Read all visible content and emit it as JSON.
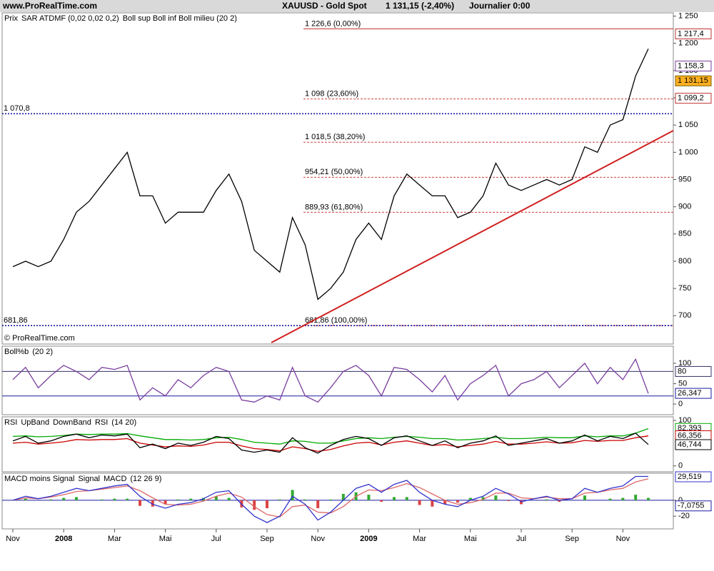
{
  "header": {
    "site": "www.ProRealTime.com",
    "title": "XAUUSD - Gold Spot",
    "quote": "1 131,15 (-2,40%)",
    "period": "Journalier 0:00"
  },
  "chart_data": [
    {
      "type": "line",
      "title": "Prix",
      "watermark": "© ProRealTime.com",
      "indicators": [
        {
          "text": "SAR ATDMF (0,02 0,02 0,2)",
          "color": "#d04040"
        },
        {
          "text": "Boll sup Boll inf Boll milieu (20 2)",
          "color": "#7a3fa0"
        }
      ],
      "categories": [
        "Nov",
        null,
        null,
        null,
        "2008",
        null,
        null,
        null,
        "Mar",
        null,
        null,
        null,
        "Mai",
        null,
        null,
        null,
        "Jul",
        null,
        null,
        null,
        "Sep",
        null,
        null,
        null,
        "Nov",
        null,
        null,
        null,
        "2009",
        null,
        null,
        null,
        "Mar",
        null,
        null,
        null,
        "Mai",
        null,
        null,
        null,
        "Jul",
        null,
        null,
        null,
        "Sep",
        null,
        null,
        null,
        "Nov",
        null,
        null
      ],
      "series": [
        {
          "color": "#000000",
          "values": [
            790,
            800,
            790,
            800,
            840,
            890,
            910,
            940,
            970,
            1000,
            920,
            920,
            870,
            890,
            890,
            890,
            930,
            960,
            910,
            820,
            800,
            780,
            880,
            830,
            730,
            750,
            780,
            840,
            870,
            840,
            920,
            960,
            940,
            920,
            920,
            880,
            890,
            920,
            980,
            940,
            930,
            940,
            950,
            940,
            950,
            1010,
            1000,
            1050,
            1060,
            1140,
            1190
          ]
        }
      ],
      "ylim": [
        648,
        1256
      ],
      "yticks": [
        700,
        750,
        800,
        850,
        900,
        950,
        {
          "value": 1000,
          "label": "1 000"
        },
        {
          "value": 1050,
          "label": "1 050"
        },
        {
          "value": 1100,
          "label": "1 100"
        },
        {
          "value": 1150,
          "label": "1 150"
        },
        {
          "value": 1200,
          "label": "1 200"
        },
        {
          "value": 1250,
          "label": "1 250"
        }
      ],
      "levels": [
        {
          "value": 1226.6,
          "label": "1 226,6 (0,00%)",
          "color": "#c03030",
          "style": "solid"
        },
        {
          "value": 1098,
          "label": "1 098 (23,60%)",
          "color": "#d04040",
          "style": "dashed"
        },
        {
          "value": 1018.5,
          "label": "1 018,5 (38,20%)",
          "color": "#d04040",
          "style": "dashed"
        },
        {
          "value": 954.21,
          "label": "954,21 (50,00%)",
          "color": "#d04040",
          "style": "dashed"
        },
        {
          "value": 889.93,
          "label": "889,93 (61,80%)",
          "color": "#d04040",
          "style": "dashed"
        },
        {
          "value": 681.86,
          "label": "681,86 (100,00%)",
          "color": "#d04040",
          "style": "dashed"
        },
        {
          "value": 1070.8,
          "label": "1 070,8",
          "color": "#1a1aa0",
          "style": "dotted"
        },
        {
          "value": 681.86,
          "label": "681,86",
          "color": "#1a1aa0",
          "style": "dotted"
        }
      ],
      "tags": [
        {
          "value": 1217.4,
          "label": "1 217,4",
          "color": "#c03030",
          "fill": "#ffffff"
        },
        {
          "value": 1158.3,
          "label": "1 158,3",
          "color": "#7a3fa0",
          "fill": "#ffffff"
        },
        {
          "value": 1131.15,
          "label": "1 131,15",
          "color": "#806000",
          "fill": "#ffb020"
        },
        {
          "value": 1099.2,
          "label": "1 099,2",
          "color": "#c03030",
          "fill": "#ffffff"
        }
      ]
    },
    {
      "type": "line",
      "title": "Boll%b",
      "params": "(20 2)",
      "series": [
        {
          "color": "#7a3fa0",
          "values": [
            60,
            90,
            40,
            70,
            95,
            80,
            60,
            90,
            85,
            95,
            10,
            40,
            20,
            60,
            40,
            70,
            90,
            80,
            10,
            5,
            20,
            10,
            90,
            20,
            5,
            40,
            80,
            95,
            70,
            20,
            90,
            85,
            60,
            30,
            70,
            10,
            50,
            70,
            95,
            20,
            50,
            60,
            80,
            40,
            70,
            100,
            50,
            90,
            60,
            110,
            26
          ]
        }
      ],
      "ylim": [
        -26,
        142
      ],
      "yticks": [
        0,
        50,
        100
      ],
      "levels": [
        {
          "value": 80,
          "color": "#333366",
          "style": "solid"
        },
        {
          "value": 20,
          "color": "#1a1aa0",
          "style": "solid"
        }
      ],
      "tags": [
        {
          "value": 80,
          "label": "80",
          "color": "#333366",
          "fill": "#ffffff"
        },
        {
          "value": 26.347,
          "label": "26,347",
          "color": "#1a1aa0",
          "fill": "#ffffff"
        }
      ]
    },
    {
      "type": "line",
      "title": "RSI",
      "params": "(14 20)",
      "series": [
        {
          "name": "UpBand",
          "color": "#00aa00",
          "values": [
            65,
            66,
            64,
            65,
            67,
            70,
            69,
            70,
            70,
            71,
            66,
            62,
            58,
            58,
            57,
            58,
            62,
            63,
            58,
            52,
            50,
            48,
            55,
            54,
            50,
            50,
            55,
            60,
            62,
            60,
            63,
            65,
            63,
            60,
            60,
            57,
            58,
            60,
            63,
            60,
            60,
            61,
            63,
            62,
            62,
            66,
            64,
            66,
            66,
            72,
            82
          ]
        },
        {
          "name": "DownBand",
          "color": "#cc0000",
          "values": [
            50,
            52,
            48,
            50,
            53,
            58,
            57,
            58,
            58,
            60,
            50,
            46,
            42,
            44,
            43,
            46,
            52,
            52,
            44,
            38,
            36,
            33,
            42,
            38,
            32,
            36,
            44,
            50,
            52,
            46,
            52,
            55,
            50,
            45,
            47,
            42,
            45,
            48,
            54,
            48,
            48,
            50,
            53,
            50,
            51,
            56,
            54,
            56,
            56,
            62,
            66
          ]
        },
        {
          "name": "RSI",
          "color": "#000000",
          "values": [
            55,
            65,
            50,
            55,
            65,
            70,
            62,
            68,
            66,
            70,
            40,
            48,
            38,
            50,
            45,
            52,
            65,
            60,
            35,
            30,
            35,
            30,
            62,
            40,
            28,
            45,
            58,
            65,
            60,
            45,
            62,
            66,
            55,
            45,
            55,
            40,
            50,
            55,
            66,
            45,
            50,
            55,
            60,
            50,
            55,
            68,
            55,
            65,
            60,
            72,
            47
          ]
        }
      ],
      "ylim": [
        -13,
        108
      ],
      "yticks": [
        0,
        100
      ],
      "tags": [
        {
          "value": 82.393,
          "label": "82,393",
          "color": "#00aa00",
          "fill": "#ffffff"
        },
        {
          "value": 66.356,
          "label": "66,356",
          "color": "#cc0000",
          "fill": "#ffffff"
        },
        {
          "value": 46.744,
          "label": "46,744",
          "color": "#000000",
          "fill": "#ffffff"
        }
      ]
    },
    {
      "type": "line",
      "title": "",
      "params": "(12 26 9)",
      "series": [
        {
          "name": "MACD moins Signal",
          "type": "bar",
          "color": "#33aa33",
          "negative_color": "#dd4444",
          "values": [
            0,
            2,
            0,
            1,
            3,
            4,
            0,
            1,
            2,
            2,
            -7,
            -8,
            -5,
            1,
            2,
            3,
            5,
            3,
            -9,
            -12,
            -10,
            1,
            13,
            1,
            -10,
            1,
            8,
            10,
            7,
            -2,
            4,
            4,
            -6,
            -8,
            -5,
            -3,
            3,
            4,
            6,
            -1,
            -5,
            0,
            1,
            -2,
            0,
            6,
            0,
            2,
            3,
            7,
            3
          ]
        },
        {
          "name": "Signal",
          "color": "#dd6666",
          "values": [
            0,
            3,
            2,
            4,
            7,
            11,
            12,
            14,
            16,
            18,
            12,
            3,
            -5,
            -6,
            -5,
            -1,
            5,
            9,
            4,
            -8,
            -18,
            -21,
            -8,
            -6,
            -15,
            -16,
            -8,
            5,
            13,
            12,
            16,
            21,
            16,
            8,
            0,
            -5,
            -3,
            1,
            9,
            9,
            3,
            2,
            4,
            2,
            2,
            9,
            10,
            13,
            15,
            23,
            27
          ]
        },
        {
          "name": "MACD",
          "color": "#3333cc",
          "values": [
            0,
            5,
            2,
            5,
            10,
            15,
            12,
            15,
            18,
            20,
            5,
            -5,
            -10,
            -5,
            -3,
            2,
            10,
            12,
            -5,
            -20,
            -28,
            -20,
            5,
            -5,
            -25,
            -15,
            0,
            15,
            20,
            10,
            20,
            25,
            10,
            0,
            -5,
            -8,
            0,
            5,
            15,
            8,
            -2,
            2,
            5,
            0,
            2,
            15,
            10,
            15,
            18,
            30,
            30
          ]
        }
      ],
      "ylim": [
        -36,
        34
      ],
      "yticks": [
        -20,
        0
      ],
      "levels": [
        {
          "value": 0,
          "color": "#1a1aa0",
          "style": "solid"
        }
      ],
      "tags": [
        {
          "value": 29.519,
          "label": "29,519",
          "color": "#3333cc",
          "fill": "#ffffff"
        },
        {
          "value": -7.0755,
          "label": "-7,0755",
          "color": "#1a1aa0",
          "fill": "#ffffff"
        }
      ]
    }
  ]
}
